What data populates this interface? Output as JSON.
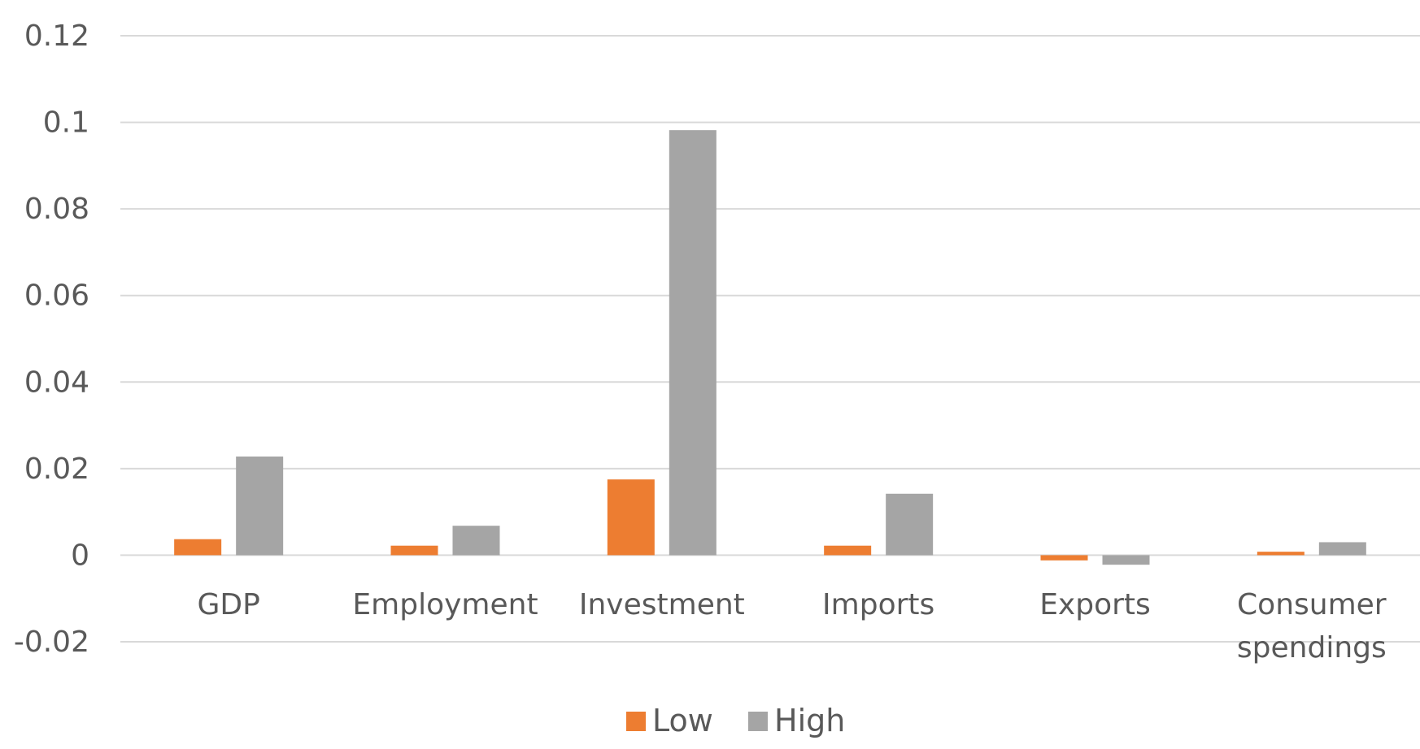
{
  "chart_data": {
    "type": "bar",
    "categories": [
      "GDP",
      "Employment",
      "Investment",
      "Imports",
      "Exports",
      "Consumer spendings"
    ],
    "series": [
      {
        "name": "Low",
        "color": "#ED7D31",
        "values": [
          0.0037,
          0.0022,
          0.0175,
          0.0022,
          -0.0012,
          0.0008
        ]
      },
      {
        "name": "High",
        "color": "#A5A5A5",
        "values": [
          0.0228,
          0.0068,
          0.0982,
          0.0142,
          -0.0022,
          0.003
        ]
      }
    ],
    "ylim": [
      -0.02,
      0.12
    ],
    "yticks": [
      -0.02,
      0,
      0.02,
      0.04,
      0.06,
      0.08,
      0.1,
      0.12
    ],
    "ytick_labels": [
      "-0.02",
      "0",
      "0.02",
      "0.04",
      "0.06",
      "0.08",
      "0.1",
      "0.12"
    ],
    "grid": true,
    "legend_position": "bottom-center",
    "gridline_color": "#D9D9D9",
    "text_color": "#595959"
  }
}
